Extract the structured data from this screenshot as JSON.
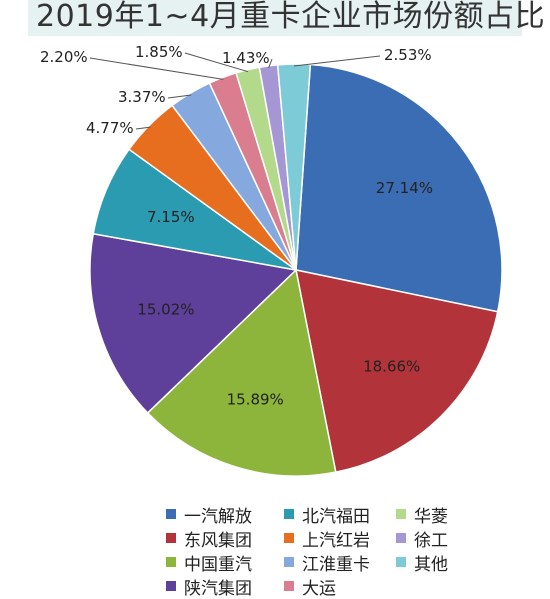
{
  "title": "2019年1~4月重卡企业市场份额占比",
  "chart_data": {
    "type": "pie",
    "title": "2019年1~4月重卡企业市场份额占比",
    "slices": [
      {
        "name": "一汽解放",
        "value": 27.14,
        "label": "27.14%",
        "color": "#3b6db5"
      },
      {
        "name": "东风集团",
        "value": 18.66,
        "label": "18.66%",
        "color": "#b2343a"
      },
      {
        "name": "中国重汽",
        "value": 15.89,
        "label": "15.89%",
        "color": "#8db53b"
      },
      {
        "name": "陕汽集团",
        "value": 15.02,
        "label": "15.02%",
        "color": "#5e3f99"
      },
      {
        "name": "北汽福田",
        "value": 7.15,
        "label": "7.15%",
        "color": "#2a9bb0"
      },
      {
        "name": "上汽红岩",
        "value": 4.77,
        "label": "4.77%",
        "color": "#e86e1f"
      },
      {
        "name": "江淮重卡",
        "value": 3.37,
        "label": "3.37%",
        "color": "#85a9de"
      },
      {
        "name": "大运",
        "value": 2.2,
        "label": "2.20%",
        "color": "#d97d8f"
      },
      {
        "name": "华菱",
        "value": 1.85,
        "label": "1.85%",
        "color": "#b3d98a"
      },
      {
        "name": "徐工",
        "value": 1.43,
        "label": "1.43%",
        "color": "#a597d4"
      },
      {
        "name": "其他",
        "value": 2.53,
        "label": "2.53%",
        "color": "#7ecbd8"
      }
    ],
    "legend_order": [
      "一汽解放",
      "北汽福田",
      "华菱",
      "东风集团",
      "上汽红岩",
      "徐工",
      "中国重汽",
      "江淮重卡",
      "其他",
      "陕汽集团",
      "大运"
    ],
    "legend_position": "bottom"
  }
}
